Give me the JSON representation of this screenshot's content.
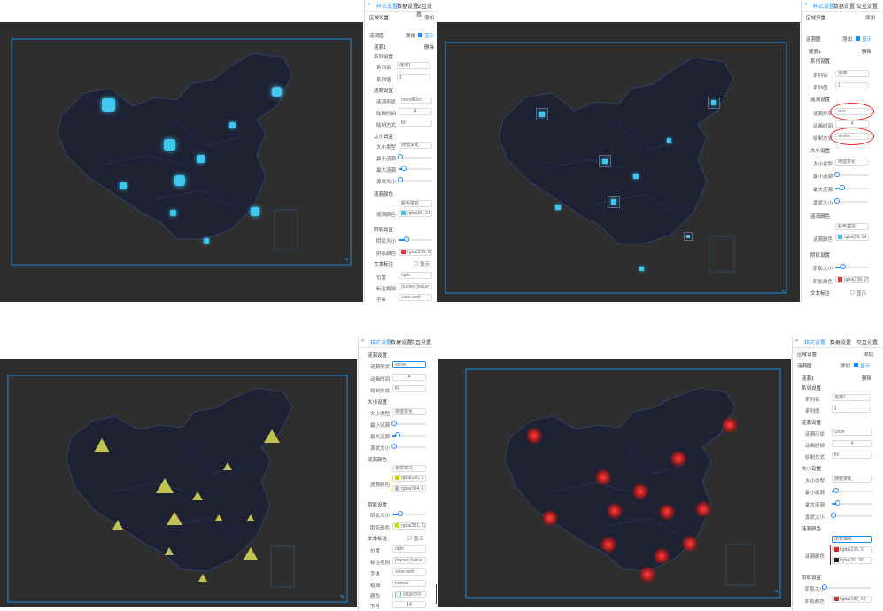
{
  "tabs": [
    "样式设置",
    "数据设置",
    "交互设置"
  ],
  "collapse": "«",
  "common": {
    "area_settings": "区域设置",
    "add": "添加",
    "ripple_map": "涟漪图",
    "show": "显示",
    "ripple1": "涟漪1",
    "delete": "删除",
    "series_settings": "系列设置",
    "series_name": "系列名",
    "series_value": "系列值",
    "ripple_settings": "涟漪设置",
    "ripple_shape": "涟漪形状",
    "anim_time": "动画时间",
    "draw_mode": "绘制方式",
    "size_settings": "大小设置",
    "size_type": "大小类型",
    "min_ripple": "最小涟漪",
    "max_ripple": "最大涟漪",
    "fixed_size": "源状大小",
    "ripple_color": "涟漪颜色",
    "shadow_settings": "阴影设置",
    "shadow_size": "阴影大小",
    "shadow_color": "阴影颜色",
    "text_label": "文本标注",
    "position": "位置",
    "label_rule": "标注规则",
    "font": "字体",
    "weight": "粗细",
    "color": "颜色",
    "font_size": "字号"
  },
  "panel1": {
    "series_name_value": "涟漪1",
    "series_value_value": "1",
    "shape": "roundRect",
    "anim": "4",
    "draw": "fill",
    "size_type": "随值变化",
    "fill_type": "颜色填充",
    "ripple_color": "rgba(39, 24",
    "ripple_color_hex": "#3ec8f0",
    "shadow_color": "rgba(238, 25,",
    "shadow_color_hex": "#e83030",
    "position": "right",
    "label_rule": "{name}:{value",
    "font": "sans-serif"
  },
  "panel2": {
    "series_name_value": "涟漪1",
    "series_value_value": "1",
    "shape": "rect",
    "anim": "4",
    "draw": "stroke",
    "size_type": "随值变化",
    "fill_type": "颜色填充",
    "ripple_color": "rgba(26, 24",
    "ripple_color_hex": "#3ec8f0",
    "shadow_color": "rgba(238, 25,",
    "shadow_color_hex": "#e83030"
  },
  "panel3": {
    "shape": "arrow",
    "anim": "4",
    "draw": "fill",
    "size_type": "随值变化",
    "fill_type": "渐变填充",
    "grad1": "rgba(200, 2",
    "grad1_hex": "#c8d200",
    "grad2": "rgba(184, 1",
    "grad2_hex": "#b8b8b8",
    "shadow_color": "rgba(201, 225",
    "shadow_color_hex": "#c9e100",
    "position": "right",
    "label_rule": "{name}:{value",
    "font": "sans-serif",
    "weight": "normal",
    "color": "#D5F7FF",
    "font_size": "14"
  },
  "panel4": {
    "series_name_value": "涟漪1",
    "series_value_value": "1",
    "shape": "circle",
    "anim": "4",
    "draw": "fill",
    "size_type": "随值变化",
    "fill_type": "渐变填充",
    "grad1": "rgba(225, 3",
    "grad1_hex": "#e12020",
    "grad2": "rgba(30, 30",
    "grad2_hex": "#1e1e1e",
    "shadow_color": "rgba(187, 62,",
    "shadow_color_hex": "#bb3e30"
  }
}
